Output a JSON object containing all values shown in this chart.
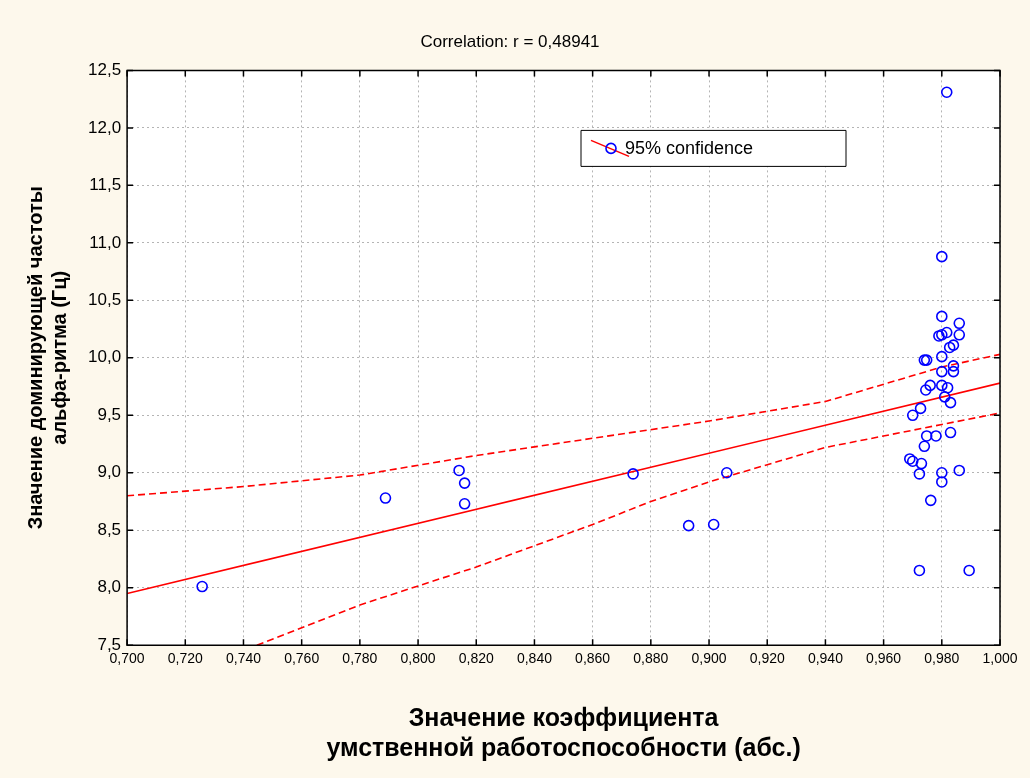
{
  "chart_data": {
    "type": "scatter",
    "title": "Correlation: r = 0,48941",
    "xlabel": "Значение коэффициента\nумственной работоспособности (абс.)",
    "ylabel": "Значение доминирующей частоты\nальфа-ритма (Гц)",
    "xlim": [
      0.7,
      1.0
    ],
    "ylim": [
      7.5,
      12.5
    ],
    "xticks": [
      {
        "value": 0.7,
        "label": "0,700"
      },
      {
        "value": 0.72,
        "label": "0,720"
      },
      {
        "value": 0.74,
        "label": "0,740"
      },
      {
        "value": 0.76,
        "label": "0,760"
      },
      {
        "value": 0.78,
        "label": "0,780"
      },
      {
        "value": 0.8,
        "label": "0,800"
      },
      {
        "value": 0.82,
        "label": "0,820"
      },
      {
        "value": 0.84,
        "label": "0,840"
      },
      {
        "value": 0.86,
        "label": "0,860"
      },
      {
        "value": 0.88,
        "label": "0,880"
      },
      {
        "value": 0.9,
        "label": "0,900"
      },
      {
        "value": 0.92,
        "label": "0,920"
      },
      {
        "value": 0.94,
        "label": "0,940"
      },
      {
        "value": 0.96,
        "label": "0,960"
      },
      {
        "value": 0.98,
        "label": "0,980"
      },
      {
        "value": 1.0,
        "label": "1,000"
      }
    ],
    "yticks": [
      {
        "value": 7.5,
        "label": "7,5"
      },
      {
        "value": 8.0,
        "label": "8,0"
      },
      {
        "value": 8.5,
        "label": "8,5"
      },
      {
        "value": 9.0,
        "label": "9,0"
      },
      {
        "value": 9.5,
        "label": "9,5"
      },
      {
        "value": 10.0,
        "label": "10,0"
      },
      {
        "value": 10.5,
        "label": "10,5"
      },
      {
        "value": 11.0,
        "label": "11,0"
      },
      {
        "value": 11.5,
        "label": "11,5"
      },
      {
        "value": 12.0,
        "label": "12,0"
      },
      {
        "value": 12.5,
        "label": "12,5"
      }
    ],
    "grid": true,
    "legend": "top right",
    "series": [
      {
        "name": "95% confidence",
        "marker": "circle",
        "color": "#0000ff",
        "x": [
          0.7258,
          0.7888,
          0.8141,
          0.816,
          0.816,
          0.8739,
          0.893,
          0.9016,
          0.9061,
          0.9817,
          0.98,
          0.98,
          0.986,
          0.986,
          0.979,
          0.98,
          0.9817,
          0.9827,
          0.984,
          0.98,
          0.974,
          0.9748,
          0.984,
          0.984,
          0.98,
          0.976,
          0.9745,
          0.98,
          0.982,
          0.981,
          0.983,
          0.9727,
          0.97,
          0.9748,
          0.978,
          0.983,
          0.974,
          0.969,
          0.97,
          0.973,
          0.9723,
          0.98,
          0.98,
          0.986,
          0.9762,
          0.9723,
          0.9894
        ],
        "values": [
          8.01,
          8.78,
          9.02,
          8.91,
          8.73,
          8.99,
          8.54,
          8.55,
          9.0,
          12.31,
          10.88,
          10.36,
          10.3,
          10.2,
          10.19,
          10.2,
          10.22,
          10.09,
          10.11,
          10.01,
          9.98,
          9.98,
          9.93,
          9.88,
          9.88,
          9.76,
          9.72,
          9.76,
          9.74,
          9.66,
          9.61,
          9.56,
          9.5,
          9.32,
          9.32,
          9.35,
          9.23,
          9.12,
          9.1,
          9.08,
          8.99,
          9.0,
          8.92,
          9.02,
          8.76,
          8.15,
          8.15
        ]
      },
      {
        "type": "line",
        "color": "#ff0000",
        "line_style": "solid",
        "x": [
          0.7,
          1.0
        ],
        "values": [
          7.95,
          9.78
        ]
      },
      {
        "type": "line",
        "color": "#ff0000",
        "line_style": "dashed",
        "x": [
          0.7,
          0.74,
          0.78,
          0.82,
          0.86,
          0.9,
          0.94,
          0.98,
          1.0
        ],
        "values": [
          8.8,
          8.88,
          8.98,
          9.15,
          9.3,
          9.45,
          9.62,
          9.92,
          10.03
        ]
      },
      {
        "type": "line",
        "color": "#ff0000",
        "line_style": "dashed",
        "x": [
          0.7446,
          0.78,
          0.82,
          0.86,
          0.88,
          0.9,
          0.94,
          0.98,
          1.0
        ],
        "values": [
          7.5,
          7.85,
          8.18,
          8.55,
          8.75,
          8.92,
          9.22,
          9.42,
          9.52
        ]
      }
    ]
  }
}
